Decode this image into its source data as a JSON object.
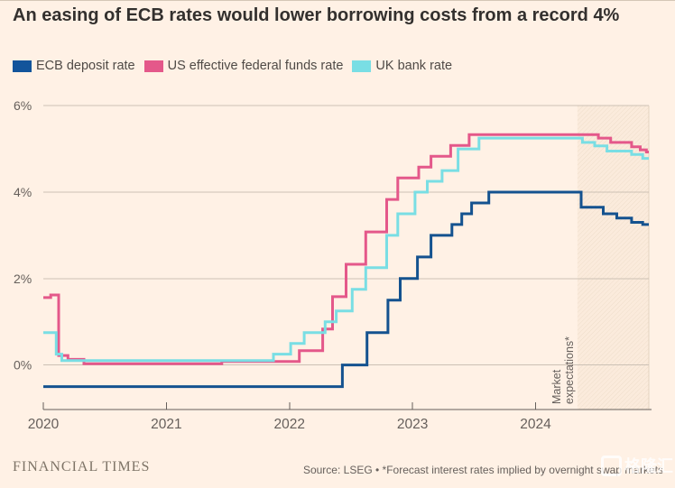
{
  "title": "An easing of ECB rates would lower borrowing costs from a record 4%",
  "legend": [
    {
      "label": "ECB deposit rate",
      "color": "#12549b"
    },
    {
      "label": "US effective federal funds rate",
      "color": "#e4588a"
    },
    {
      "label": "UK bank rate",
      "color": "#79dee4"
    }
  ],
  "chart_data": {
    "type": "line",
    "step": true,
    "title": "An easing of ECB rates would lower borrowing costs from a record 4%",
    "xlim": [
      2020,
      2024.92
    ],
    "ylim": [
      -1.03,
      6.3
    ],
    "x_ticks": [
      2020,
      2021,
      2022,
      2023,
      2024
    ],
    "y_ticks": [
      0,
      2,
      4,
      6
    ],
    "y_tick_suffix": "%",
    "forecast_region": {
      "start": 2024.34,
      "label_line1": "Market",
      "label_line2": "expectations*"
    },
    "series": [
      {
        "name": "US effective federal funds rate",
        "color": "#e4588a",
        "points": [
          [
            2020.0,
            1.56
          ],
          [
            2020.06,
            1.62
          ],
          [
            2020.125,
            0.22
          ],
          [
            2020.2,
            0.13
          ],
          [
            2020.33,
            0.03
          ],
          [
            2021.45,
            0.08
          ],
          [
            2022.08,
            0.33
          ],
          [
            2022.27,
            0.83
          ],
          [
            2022.35,
            1.58
          ],
          [
            2022.46,
            2.33
          ],
          [
            2022.62,
            3.08
          ],
          [
            2022.79,
            3.83
          ],
          [
            2022.88,
            4.33
          ],
          [
            2023.05,
            4.58
          ],
          [
            2023.15,
            4.83
          ],
          [
            2023.31,
            5.08
          ],
          [
            2023.46,
            5.33
          ],
          [
            2024.51,
            5.25
          ],
          [
            2024.61,
            5.15
          ],
          [
            2024.78,
            5.05
          ],
          [
            2024.85,
            4.98
          ],
          [
            2024.9,
            4.93
          ]
        ]
      },
      {
        "name": "UK bank rate",
        "color": "#79dee4",
        "points": [
          [
            2020.0,
            0.75
          ],
          [
            2020.105,
            0.25
          ],
          [
            2020.15,
            0.1
          ],
          [
            2021.87,
            0.25
          ],
          [
            2022.01,
            0.5
          ],
          [
            2022.12,
            0.75
          ],
          [
            2022.29,
            1.0
          ],
          [
            2022.38,
            1.25
          ],
          [
            2022.51,
            1.75
          ],
          [
            2022.62,
            2.25
          ],
          [
            2022.79,
            3.0
          ],
          [
            2022.88,
            3.5
          ],
          [
            2023.02,
            4.0
          ],
          [
            2023.12,
            4.25
          ],
          [
            2023.24,
            4.5
          ],
          [
            2023.37,
            5.0
          ],
          [
            2023.54,
            5.25
          ],
          [
            2024.38,
            5.15
          ],
          [
            2024.48,
            5.07
          ],
          [
            2024.58,
            4.95
          ],
          [
            2024.78,
            4.87
          ],
          [
            2024.87,
            4.78
          ]
        ]
      },
      {
        "name": "ECB deposit rate",
        "color": "#14528f",
        "points": [
          [
            2020.0,
            -0.5
          ],
          [
            2022.43,
            0.0
          ],
          [
            2022.63,
            0.75
          ],
          [
            2022.8,
            1.5
          ],
          [
            2022.9,
            2.0
          ],
          [
            2023.04,
            2.5
          ],
          [
            2023.15,
            3.0
          ],
          [
            2023.32,
            3.25
          ],
          [
            2023.4,
            3.5
          ],
          [
            2023.48,
            3.75
          ],
          [
            2023.62,
            4.0
          ],
          [
            2024.37,
            3.65
          ],
          [
            2024.55,
            3.5
          ],
          [
            2024.66,
            3.4
          ],
          [
            2024.78,
            3.3
          ],
          [
            2024.87,
            3.25
          ]
        ]
      }
    ]
  },
  "footer": {
    "brand": "FINANCIAL TIMES",
    "source": "Source: LSEG • *Forecast interest rates implied by overnight swap markets",
    "watermark": "格隆汇"
  }
}
